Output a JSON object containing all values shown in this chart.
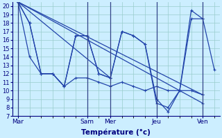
{
  "xlabel": "Température (°c)",
  "background_color": "#cceeff",
  "grid_color": "#99cccc",
  "line_color": "#2244aa",
  "xtick_labels": [
    "Mar",
    "Sam",
    "Mer",
    "Jeu",
    "Ven"
  ],
  "xtick_positions": [
    0,
    6,
    8,
    12,
    16
  ],
  "ylim": [
    7,
    20.5
  ],
  "yticks": [
    7,
    8,
    9,
    10,
    11,
    12,
    13,
    14,
    15,
    16,
    17,
    18,
    19,
    20
  ],
  "xlim": [
    -0.5,
    17.5
  ],
  "series": [
    {
      "x": [
        0,
        1,
        2,
        3,
        4,
        5,
        6,
        7,
        8,
        9,
        10,
        11,
        12,
        13,
        14,
        15,
        16
      ],
      "y": [
        20.5,
        18.0,
        12.0,
        12.0,
        10.5,
        16.5,
        16.5,
        12.0,
        11.5,
        17.0,
        16.5,
        15.5,
        8.5,
        8.0,
        10.0,
        19.5,
        18.5
      ]
    },
    {
      "x": [
        0,
        1,
        2,
        3,
        4,
        5,
        6,
        7,
        8,
        9,
        10,
        11,
        12,
        13,
        14,
        15,
        16,
        17
      ],
      "y": [
        20.5,
        18.0,
        12.0,
        12.0,
        10.5,
        16.5,
        16.5,
        12.0,
        11.5,
        17.0,
        16.5,
        15.5,
        9.0,
        7.5,
        10.0,
        18.5,
        18.5,
        12.5
      ]
    },
    {
      "x": [
        0,
        1,
        2,
        3,
        4,
        5,
        6,
        7,
        8,
        9,
        10,
        11,
        12,
        13,
        14,
        15,
        16
      ],
      "y": [
        20.5,
        14.0,
        12.0,
        12.0,
        10.5,
        11.5,
        11.5,
        11.0,
        10.5,
        11.0,
        10.5,
        10.0,
        10.5,
        10.0,
        10.0,
        10.0,
        9.5
      ]
    },
    {
      "x": [
        0,
        16
      ],
      "y": [
        20.5,
        9.5
      ]
    },
    {
      "x": [
        0,
        16
      ],
      "y": [
        20.5,
        8.5
      ]
    },
    {
      "x": [
        0,
        8
      ],
      "y": [
        20.5,
        11.5
      ]
    }
  ]
}
